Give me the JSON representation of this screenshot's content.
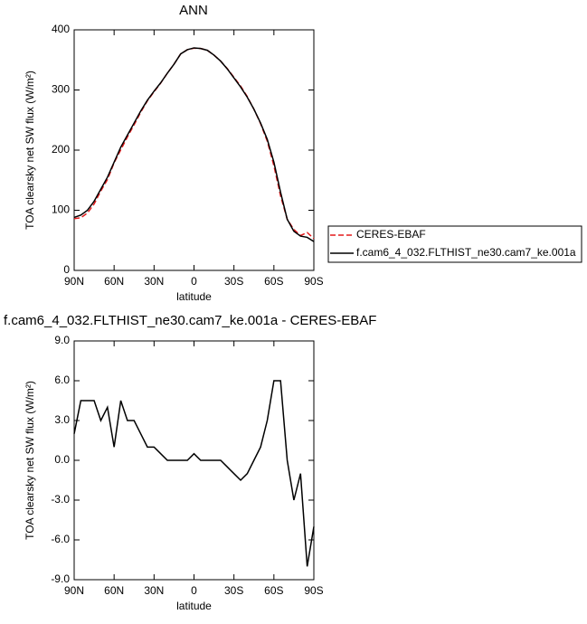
{
  "chart_data": [
    {
      "type": "line",
      "title": "ANN",
      "xlabel": "latitude",
      "ylabel": "TOA clearsky net SW flux (W/m²)",
      "x": [
        90,
        85,
        80,
        75,
        70,
        65,
        60,
        55,
        50,
        45,
        40,
        35,
        30,
        25,
        20,
        15,
        10,
        5,
        0,
        -5,
        -10,
        -15,
        -20,
        -25,
        -30,
        -35,
        -40,
        -45,
        -50,
        -55,
        -60,
        -65,
        -70,
        -75,
        -80,
        -85,
        -90
      ],
      "xlim": [
        90,
        -90
      ],
      "xticks": [
        {
          "value": 90,
          "label": "90N"
        },
        {
          "value": 60,
          "label": "60N"
        },
        {
          "value": 30,
          "label": "30N"
        },
        0,
        {
          "value": -30,
          "label": "30S"
        },
        {
          "value": -60,
          "label": "60S"
        },
        {
          "value": -90,
          "label": "90S"
        }
      ],
      "ylim": [
        0,
        400
      ],
      "yticks": [
        0,
        100,
        200,
        300,
        400
      ],
      "legend": "right",
      "series": [
        {
          "name": "CERES-EBAF",
          "color": "#e41a1c",
          "dash": true,
          "values": [
            86,
            87.5,
            95.5,
            110.5,
            132,
            151,
            179,
            200.5,
            222,
            242,
            263,
            282,
            297,
            311.5,
            328,
            343,
            360,
            367,
            369.5,
            369,
            366,
            358,
            348,
            335.5,
            321,
            306.5,
            289,
            268,
            244,
            215,
            174,
            124,
            85,
            68,
            58,
            63,
            53
          ]
        },
        {
          "name": "f.cam6_4_032.FLTHIST_ne30.cam7_ke.001a",
          "color": "#000000",
          "dash": false,
          "values": [
            88,
            92,
            100,
            115,
            135,
            155,
            180,
            205,
            225,
            245,
            265,
            283,
            298,
            312,
            328,
            343,
            360,
            367,
            370,
            369,
            366,
            358,
            348,
            335,
            320,
            305,
            288,
            268,
            245,
            218,
            180,
            130,
            85,
            65,
            57,
            55,
            48
          ]
        }
      ]
    },
    {
      "type": "line",
      "title": "f.cam6_4_032.FLTHIST_ne30.cam7_ke.001a - CERES-EBAF",
      "xlabel": "latitude",
      "ylabel": "TOA clearsky net SW flux (W/m²)",
      "x": [
        90,
        85,
        80,
        75,
        70,
        65,
        60,
        55,
        50,
        45,
        40,
        35,
        30,
        25,
        20,
        15,
        10,
        5,
        0,
        -5,
        -10,
        -15,
        -20,
        -25,
        -30,
        -35,
        -40,
        -45,
        -50,
        -55,
        -60,
        -65,
        -70,
        -75,
        -80,
        -85,
        -90
      ],
      "xlim": [
        90,
        -90
      ],
      "xticks": [
        {
          "value": 90,
          "label": "90N"
        },
        {
          "value": 60,
          "label": "60N"
        },
        {
          "value": 30,
          "label": "30N"
        },
        0,
        {
          "value": -30,
          "label": "30S"
        },
        {
          "value": -60,
          "label": "60S"
        },
        {
          "value": -90,
          "label": "90S"
        }
      ],
      "ylim": [
        -9,
        9
      ],
      "yticks": [
        {
          "value": -9,
          "label": "-9.0"
        },
        {
          "value": -6,
          "label": "-6.0"
        },
        {
          "value": -3,
          "label": "-3.0"
        },
        {
          "value": 0,
          "label": "0.0"
        },
        {
          "value": 3,
          "label": "3.0"
        },
        {
          "value": 6,
          "label": "6.0"
        },
        {
          "value": 9,
          "label": "9.0"
        }
      ],
      "series": [
        {
          "color": "#000000",
          "dash": false,
          "values": [
            2,
            4.5,
            4.5,
            4.5,
            3,
            4,
            1,
            4.5,
            3,
            3,
            2,
            1,
            1,
            0.5,
            0,
            0,
            0,
            0,
            0.5,
            0,
            0,
            0,
            0,
            -0.5,
            -1,
            -1.5,
            -1,
            0,
            1,
            3,
            6,
            6,
            0,
            -3,
            -1,
            -8,
            -5
          ]
        }
      ]
    }
  ]
}
